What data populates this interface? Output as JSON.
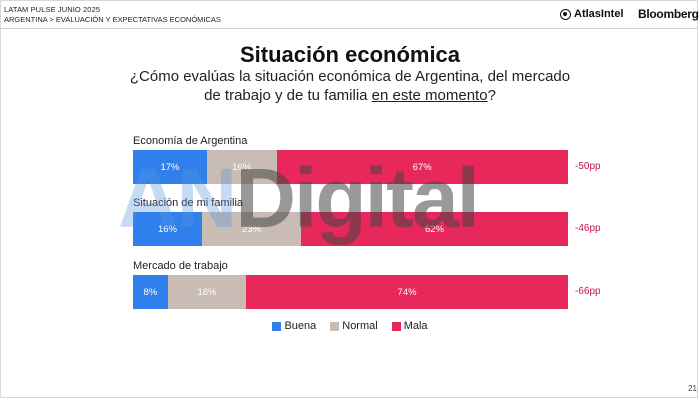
{
  "header": {
    "title": "LATAM PULSE JUNIO 2025",
    "breadcrumb": "ARGENTINA > EVALUACIÓN Y EXPECTATIVAS ECONÓMICAS",
    "logo_left": "AtlasIntel",
    "logo_right": "Bloomberg"
  },
  "watermark": {
    "part1": "AN",
    "part2": "Digital"
  },
  "page_number": "21",
  "colors": {
    "buena": "#2f80ed",
    "normal": "#c9bcb4",
    "mala": "#e8275a",
    "diff": "#c4164a"
  },
  "chart_data": {
    "type": "bar",
    "orientation": "horizontal",
    "stacked": true,
    "title": "Situación económica",
    "subtitle_before": "¿Cómo evalúas la situación económica de Argentina, del mercado de trabajo y de tu familia ",
    "subtitle_underlined": "en este momento",
    "subtitle_after": "?",
    "categories": [
      "Economía de Argentina",
      "Situación de mi familia",
      "Mercado de trabajo"
    ],
    "series": [
      {
        "name": "Buena",
        "values": [
          17,
          16,
          8
        ]
      },
      {
        "name": "Normal",
        "values": [
          16,
          23,
          18
        ]
      },
      {
        "name": "Mala",
        "values": [
          67,
          62,
          74
        ]
      }
    ],
    "value_labels": [
      [
        "17%",
        "16%",
        "67%"
      ],
      [
        "16%",
        "23%",
        "62%"
      ],
      [
        "8%",
        "18%",
        "74%"
      ]
    ],
    "net_labels": [
      "-50pp",
      "-46pp",
      "-66pp"
    ],
    "legend_position": "bottom"
  }
}
